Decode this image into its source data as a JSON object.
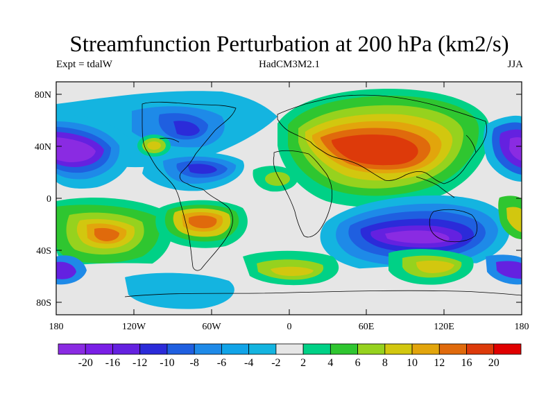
{
  "header": {
    "title": "Streamfunction Perturbation at 200 hPa (km2/s)",
    "experiment": "Expt = tdalW",
    "model": "HadCM3M2.1",
    "season": "JJA"
  },
  "map": {
    "y_ticks": [
      "80N",
      "40N",
      "0",
      "40S",
      "80S"
    ],
    "x_ticks": [
      "180",
      "120W",
      "60W",
      "0",
      "60E",
      "120E",
      "180"
    ]
  },
  "colorbar": {
    "colors": [
      "#8a2be2",
      "#7a1fe6",
      "#6421e0",
      "#2b2bd9",
      "#1f5fe0",
      "#1e8ae8",
      "#11a4e8",
      "#14b4e0",
      "#e6e6e6",
      "#00d186",
      "#2fc630",
      "#96d21e",
      "#d2c70f",
      "#e2a50c",
      "#e06a0c",
      "#dd3a0a",
      "#e00000"
    ],
    "labels": [
      "-20",
      "-16",
      "-12",
      "-10",
      "-8",
      "-6",
      "-4",
      "-2",
      "2",
      "4",
      "6",
      "8",
      "10",
      "12",
      "16",
      "20"
    ]
  }
}
